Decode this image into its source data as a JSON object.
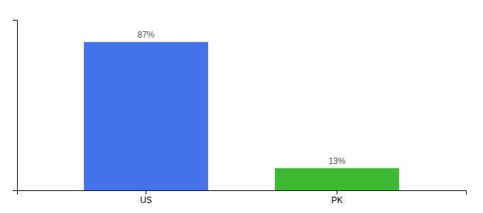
{
  "chart_data": {
    "type": "bar",
    "categories": [
      "US",
      "PK"
    ],
    "values": [
      87,
      13
    ],
    "value_labels": [
      "87%",
      "13%"
    ],
    "colors": [
      "#4472e8",
      "#3cb832"
    ],
    "ylim": [
      0,
      100
    ],
    "tick_labels": "x",
    "data_labels": true
  }
}
